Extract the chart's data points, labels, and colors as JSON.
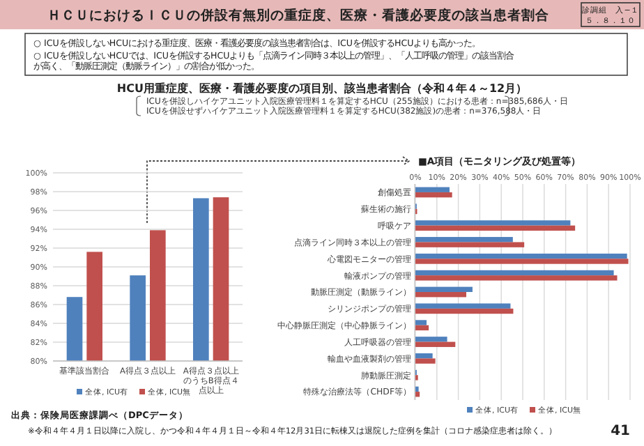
{
  "chart_data": [
    {
      "type": "bar",
      "title": "HCU用重症度、医療・看護必要度の項目別、該当患者割合（令和４年４～12月）",
      "subtitle": "ICUを併設しハイケアユニット入院医療管理料１を算定するHCU（255施設）における患者：n=385,686人・日\nICUを併設せずハイケアユニット入院医療管理料１を算定するHCU(382施設)の患者：n=376,588人・日",
      "annotations": [
        "ＨＣＵにおけるＩＣＵの併設有無別の重症度、医療・看護必要度の該当患者割合",
        "診調組　入−１",
        "５．８．１０",
        "○ ICUを併設しないHCUにおける重症度、医療・看護必要度の該当患者割合は、ICUを併設するHCUよりも高かった。",
        "○ ICUを併設しないHCUでは、ICUを併設するHCUよりも「点滴ライン同時３本以上の管理」、「人工呼吸の管理」の該当割合が高く、「動脈圧測定（動脈ライン）」の割合が低かった。",
        "出典：保険局医療課調べ（DPCデータ）",
        "※令和４年４月１日以降に入院し、かつ令和４年４月１日～令和４年12月31日に転棟又は退院した症例を集計（コロナ感染症患者は除く。）",
        "41"
      ],
      "categories": [
        "基準該当割合",
        "A得点３点以上",
        "A得点３点以上のうちB得点４点以上"
      ],
      "series": [
        {
          "name": "全体, ICU有",
          "color": "#4f81bd",
          "values": [
            86.8,
            89.1,
            97.3
          ]
        },
        {
          "name": "全体, ICU無",
          "color": "#c0504d",
          "values": [
            91.6,
            93.9,
            97.4
          ]
        }
      ],
      "ylim": [
        80,
        100
      ],
      "yticks": [
        {
          "value": 80,
          "label": "80%"
        },
        {
          "value": 82,
          "label": "82%"
        },
        {
          "value": 84,
          "label": "84%"
        },
        {
          "value": 86,
          "label": "86%"
        },
        {
          "value": 88,
          "label": "88%"
        },
        {
          "value": 90,
          "label": "90%"
        },
        {
          "value": 92,
          "label": "92%"
        },
        {
          "value": 94,
          "label": "94%"
        },
        {
          "value": 96,
          "label": "96%"
        },
        {
          "value": 98,
          "label": "98%"
        },
        {
          "value": 100,
          "label": "100%"
        }
      ],
      "grid": "y",
      "legend": "bottom"
    },
    {
      "type": "bar",
      "orientation": "horizontal",
      "title": "■A項目（モニタリング及び処置等）",
      "categories": [
        "創傷処置",
        "蘇生術の施行",
        "呼吸ケア",
        "点滴ライン同時３本以上の管理",
        "心電図モニターの管理",
        "輸液ポンプの管理",
        "動脈圧測定（動脈ライン）",
        "シリンジポンプの管理",
        "中心静脈圧測定（中心静脈ライン）",
        "人工呼吸器の管理",
        "輸血や血液製剤の管理",
        "肺動脈圧測定",
        "特殊な治療法等（CHDF等）"
      ],
      "series": [
        {
          "name": "全体, ICU有",
          "color": "#4f81bd",
          "values": [
            15.9,
            0.6,
            72.2,
            45.4,
            98.6,
            92.4,
            26.6,
            44.3,
            5.2,
            14.8,
            8.0,
            0.6,
            1.5
          ]
        },
        {
          "name": "全体, ICU無",
          "color": "#c0504d",
          "values": [
            17.1,
            0.8,
            74.4,
            50.7,
            99.2,
            94.0,
            23.7,
            45.6,
            6.2,
            18.6,
            9.3,
            1.2,
            2.0
          ]
        }
      ],
      "xlim": [
        0,
        100
      ],
      "xticks": [
        {
          "value": 0,
          "label": "0%"
        },
        {
          "value": 10,
          "label": "10%"
        },
        {
          "value": 20,
          "label": "20%"
        },
        {
          "value": 30,
          "label": "30%"
        },
        {
          "value": 40,
          "label": "40%"
        },
        {
          "value": 50,
          "label": "50%"
        },
        {
          "value": 60,
          "label": "60%"
        },
        {
          "value": 70,
          "label": "70%"
        },
        {
          "value": 80,
          "label": "80%"
        },
        {
          "value": 90,
          "label": "90%"
        },
        {
          "value": 100,
          "label": "100%"
        }
      ],
      "grid": "x",
      "legend": "bottom"
    }
  ]
}
